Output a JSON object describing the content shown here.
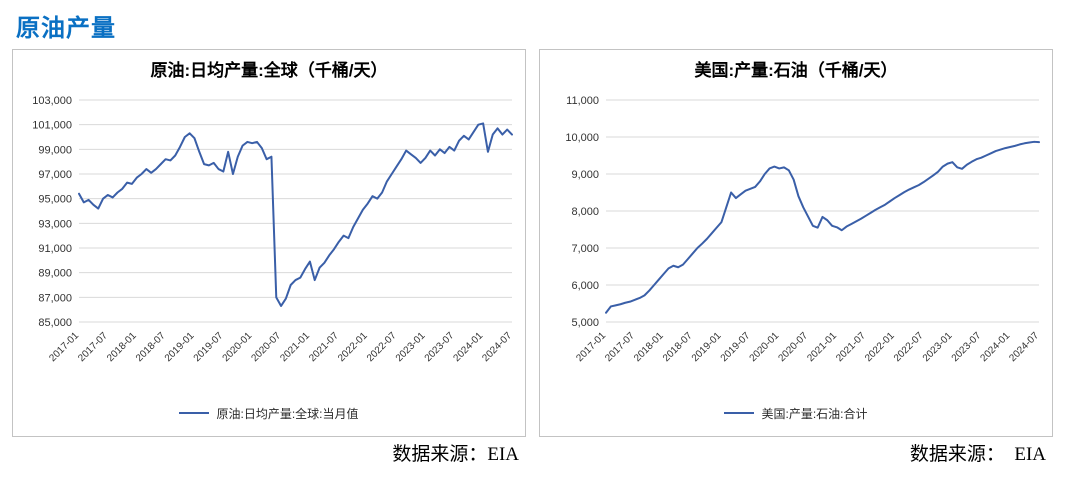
{
  "header": {
    "title": "原油产量"
  },
  "sources": {
    "left": "数据来源：EIA",
    "right": "数据来源：　EIA"
  },
  "colors": {
    "accent_title": "#0a70c3",
    "line_blue": "#3a5fa8",
    "gridline": "#d9d9d9",
    "panel_border": "#c3c3c3"
  },
  "chart_data": [
    {
      "type": "line",
      "title": "原油:日均产量:全球（千桶/天）",
      "ylim": [
        85000,
        103000
      ],
      "y_step": 2000,
      "y_tick_labels": [
        "85,000",
        "87,000",
        "89,000",
        "91,000",
        "93,000",
        "95,000",
        "97,000",
        "99,000",
        "101,000",
        "103,000"
      ],
      "x_monthly_range": {
        "start": "2017-01",
        "end": "2024-07"
      },
      "x_tick_labels": [
        "2017-01",
        "2017-07",
        "2018-01",
        "2018-07",
        "2019-01",
        "2019-07",
        "2020-01",
        "2020-07",
        "2021-01",
        "2021-07",
        "2022-01",
        "2022-07",
        "2023-01",
        "2023-07",
        "2024-01",
        "2024-07"
      ],
      "grid": "horizontal-only",
      "legend_position": "bottom",
      "line_color": "#3a5fa8",
      "series": [
        {
          "name": "原油:日均产量:全球:当月值",
          "values": [
            95400,
            94700,
            94900,
            94500,
            94200,
            95000,
            95300,
            95100,
            95500,
            95800,
            96300,
            96200,
            96700,
            97000,
            97400,
            97100,
            97400,
            97800,
            98200,
            98100,
            98500,
            99200,
            100000,
            100300,
            99900,
            98800,
            97800,
            97700,
            97900,
            97400,
            97200,
            98800,
            97000,
            98400,
            99300,
            99600,
            99500,
            99600,
            99100,
            98200,
            98400,
            87000,
            86300,
            86900,
            88000,
            88400,
            88600,
            89300,
            89900,
            88400,
            89400,
            89800,
            90400,
            90900,
            91500,
            92000,
            91800,
            92700,
            93400,
            94100,
            94600,
            95200,
            95000,
            95500,
            96400,
            97000,
            97600,
            98200,
            98900,
            98600,
            98300,
            97900,
            98300,
            98900,
            98500,
            99000,
            98700,
            99200,
            98900,
            99700,
            100100,
            99800,
            100400,
            101000,
            101100,
            98800,
            100200,
            100700,
            100200,
            100600,
            100200
          ]
        }
      ]
    },
    {
      "type": "line",
      "title": "美国:产量:石油（千桶/天）",
      "ylim": [
        5000,
        11000
      ],
      "y_step": 1000,
      "y_tick_labels": [
        "5,000",
        "6,000",
        "7,000",
        "8,000",
        "9,000",
        "10,000",
        "11,000"
      ],
      "x_monthly_range": {
        "start": "2017-01",
        "end": "2024-07"
      },
      "x_tick_labels": [
        "2017-01",
        "2017-07",
        "2018-01",
        "2018-07",
        "2019-01",
        "2019-07",
        "2020-01",
        "2020-07",
        "2021-01",
        "2021-07",
        "2022-01",
        "2022-07",
        "2023-01",
        "2023-07",
        "2024-01",
        "2024-07"
      ],
      "grid": "horizontal-only",
      "legend_position": "bottom",
      "line_color": "#3a5fa8",
      "series": [
        {
          "name": "美国:产量:石油:合计",
          "values": [
            5250,
            5420,
            5450,
            5480,
            5520,
            5550,
            5600,
            5650,
            5720,
            5850,
            6000,
            6150,
            6300,
            6450,
            6520,
            6480,
            6550,
            6700,
            6850,
            7000,
            7120,
            7250,
            7400,
            7550,
            7700,
            8100,
            8500,
            8350,
            8450,
            8550,
            8600,
            8650,
            8800,
            9000,
            9150,
            9200,
            9150,
            9180,
            9100,
            8850,
            8400,
            8100,
            7850,
            7600,
            7550,
            7840,
            7750,
            7600,
            7560,
            7480,
            7580,
            7650,
            7720,
            7790,
            7870,
            7950,
            8030,
            8100,
            8170,
            8260,
            8350,
            8430,
            8510,
            8580,
            8640,
            8700,
            8780,
            8870,
            8960,
            9060,
            9200,
            9280,
            9320,
            9180,
            9140,
            9250,
            9330,
            9400,
            9440,
            9500,
            9560,
            9620,
            9660,
            9700,
            9730,
            9760,
            9800,
            9830,
            9850,
            9870,
            9860
          ]
        }
      ]
    }
  ]
}
